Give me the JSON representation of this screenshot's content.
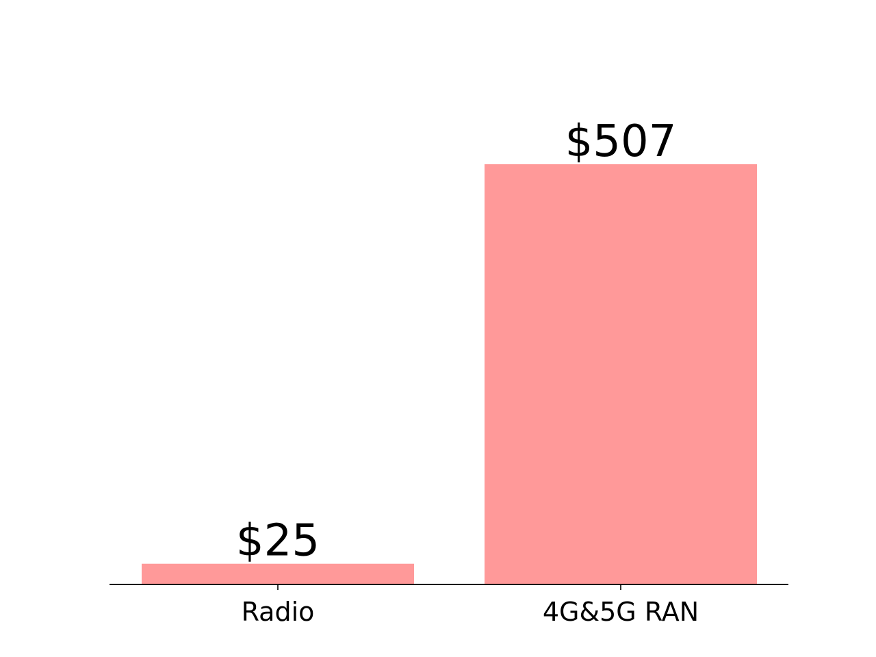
{
  "chart_data": {
    "type": "bar",
    "categories": [
      "Radio",
      "4G&5G RAN"
    ],
    "values": [
      25,
      507
    ],
    "data_labels": [
      "$25",
      "$507"
    ],
    "title": "",
    "xlabel": "",
    "ylabel": "",
    "ylim": [
      0,
      600
    ],
    "grid": false,
    "legend": "none",
    "bar_color": "#ff9999",
    "axis_color": "#000000"
  }
}
